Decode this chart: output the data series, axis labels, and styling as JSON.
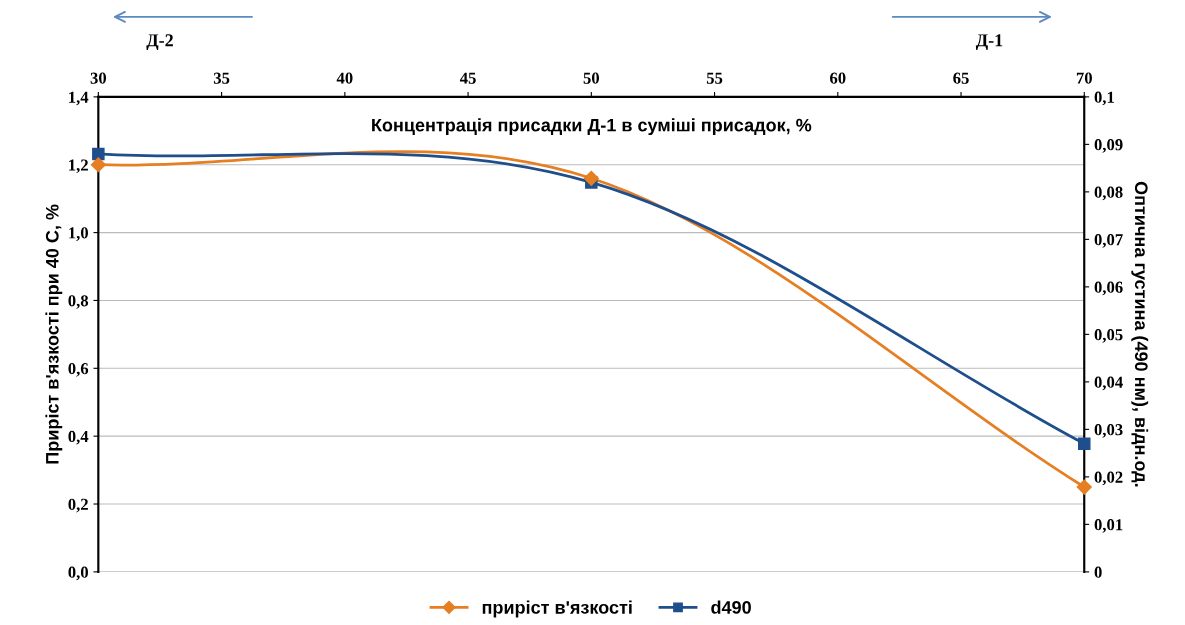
{
  "chart_data": {
    "type": "line",
    "xlabel": "Концентрація присадки Д-1 в суміші присадок, %",
    "ylabel": "Приріст в'язкості при 40 С, %",
    "y2label": "Оптична густина (490 нм), відн.од.",
    "x": [
      30,
      50,
      70
    ],
    "series": [
      {
        "name": "приріст в'язкості",
        "color": "#e67e22",
        "values": [
          1.2,
          1.16,
          0.25
        ],
        "marker": "diamond"
      },
      {
        "name": "d490",
        "color": "#1f4e8c",
        "values": [
          0.088,
          0.082,
          0.027
        ],
        "marker": "square",
        "axis": "y2"
      }
    ],
    "xlim": [
      30,
      70
    ],
    "xticks": [
      30,
      35,
      40,
      45,
      50,
      55,
      60,
      65,
      70
    ],
    "ylim": [
      0,
      1.4
    ],
    "yticks": [
      {
        "value": 0,
        "label": "0,0"
      },
      {
        "value": 0.2,
        "label": "0,2"
      },
      {
        "value": 0.4,
        "label": "0,4"
      },
      {
        "value": 0.6,
        "label": "0,6"
      },
      {
        "value": 0.8,
        "label": "0,8"
      },
      {
        "value": 1.0,
        "label": "1,0"
      },
      {
        "value": 1.2,
        "label": "1,2"
      },
      {
        "value": 1.4,
        "label": "1,4"
      }
    ],
    "y2lim": [
      0,
      0.1
    ],
    "y2ticks": [
      0,
      {
        "value": 0.01,
        "label": "0,01"
      },
      {
        "value": 0.02,
        "label": "0,02"
      },
      {
        "value": 0.03,
        "label": "0,03"
      },
      {
        "value": 0.04,
        "label": "0,04"
      },
      {
        "value": 0.05,
        "label": "0,05"
      },
      {
        "value": 0.06,
        "label": "0,06"
      },
      {
        "value": 0.07,
        "label": "0,07"
      },
      {
        "value": 0.08,
        "label": "0,08"
      },
      {
        "value": 0.09,
        "label": "0,09"
      },
      {
        "value": 0.1,
        "label": "0,1"
      }
    ],
    "grid": "y",
    "legend": "bottom",
    "line_style": "solid",
    "annotations": [
      "Д-2",
      "Д-1"
    ]
  }
}
